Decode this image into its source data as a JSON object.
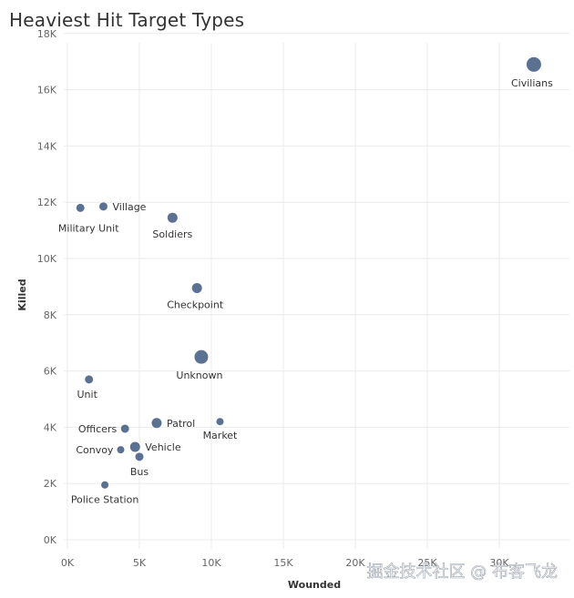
{
  "chart_data": {
    "type": "scatter",
    "title": "Heaviest Hit Target Types",
    "xlabel": "Wounded",
    "ylabel": "Killed",
    "xlim": [
      0,
      35000
    ],
    "ylim": [
      0,
      18000
    ],
    "x_ticks": [
      "0K",
      "5K",
      "10K",
      "15K",
      "20K",
      "25K",
      "30K"
    ],
    "y_ticks": [
      "0K",
      "2K",
      "4K",
      "6K",
      "8K",
      "10K",
      "12K",
      "14K",
      "16K",
      "18K"
    ],
    "grid": true,
    "color": "#5b7192",
    "points": [
      {
        "label": "Civilians",
        "x": 32400,
        "y": 16900,
        "size": 8.0
      },
      {
        "label": "Military Unit",
        "x": 900,
        "y": 11800,
        "size": 4.5
      },
      {
        "label": "Village",
        "x": 2500,
        "y": 11850,
        "size": 4.5
      },
      {
        "label": "Soldiers",
        "x": 7300,
        "y": 11450,
        "size": 5.5
      },
      {
        "label": "Checkpoint",
        "x": 9000,
        "y": 8950,
        "size": 5.5
      },
      {
        "label": "Unknown",
        "x": 9300,
        "y": 6500,
        "size": 7.5
      },
      {
        "label": "Unit",
        "x": 1500,
        "y": 5700,
        "size": 4.5
      },
      {
        "label": "Patrol",
        "x": 6200,
        "y": 4150,
        "size": 5.5
      },
      {
        "label": "Market",
        "x": 10600,
        "y": 4200,
        "size": 4.0
      },
      {
        "label": "Officers",
        "x": 4000,
        "y": 3950,
        "size": 4.5
      },
      {
        "label": "Vehicle",
        "x": 4700,
        "y": 3300,
        "size": 5.5
      },
      {
        "label": "Convoy",
        "x": 3700,
        "y": 3200,
        "size": 4.0
      },
      {
        "label": "Bus",
        "x": 5000,
        "y": 2950,
        "size": 4.5
      },
      {
        "label": "Police Station",
        "x": 2600,
        "y": 1950,
        "size": 4.0
      }
    ]
  },
  "watermark": "掘金技术社区 @ 布客飞龙"
}
